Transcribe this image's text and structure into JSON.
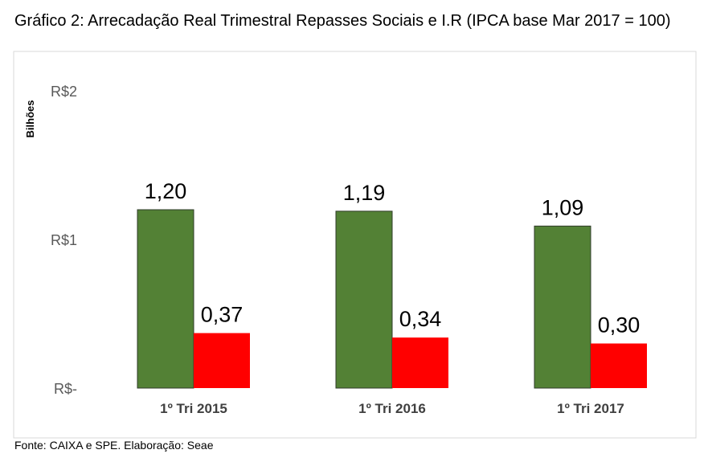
{
  "chart_data": {
    "type": "bar",
    "title": "Gráfico 2: Arrecadação Real Trimestral Repasses Sociais e I.R (IPCA base Mar 2017 = 100)",
    "ylabel": "Bilhões",
    "xlabel": "",
    "ylim": [
      0,
      2
    ],
    "yticks": [
      {
        "value": 0,
        "label": "R$-"
      },
      {
        "value": 1,
        "label": "R$1"
      },
      {
        "value": 2,
        "label": "R$2"
      }
    ],
    "categories": [
      "1º Tri 2015",
      "1º Tri 2016",
      "1º Tri 2017"
    ],
    "series": [
      {
        "name": "Repasses Sociais",
        "color": "#538135",
        "values": [
          1.2,
          1.19,
          1.09
        ],
        "labels": [
          "1,20",
          "1,19",
          "1,09"
        ]
      },
      {
        "name": "I.R",
        "color": "#FF0000",
        "values": [
          0.37,
          0.34,
          0.3
        ],
        "labels": [
          "0,37",
          "0,34",
          "0,30"
        ]
      }
    ],
    "grid": false,
    "legend": "none"
  },
  "source": "Fonte: CAIXA e SPE. Elaboração: Seae"
}
